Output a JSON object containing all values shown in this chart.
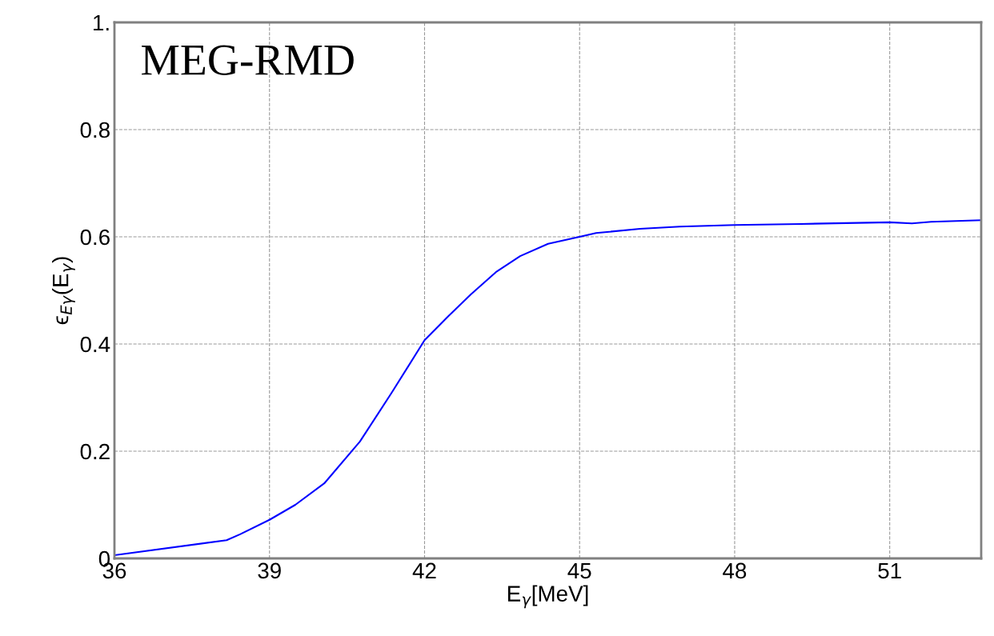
{
  "chart_data": {
    "type": "line",
    "xlabel": "E$_{γ}$[MeV]",
    "ylabel": "ϵ$_{Eγ}$(E$_{γ}$)",
    "annotations": [
      "MEG-RMD"
    ],
    "x": [
      36,
      38.17,
      38.43,
      39,
      39.5,
      40.06,
      40.75,
      41.37,
      42,
      42.46,
      42.9,
      43.38,
      43.85,
      44.39,
      45,
      45.32,
      46.17,
      46.94,
      48,
      49.27,
      51,
      51.43,
      51.8,
      52.77
    ],
    "series": [
      {
        "color": "#0000ff",
        "values": [
          0.006,
          0.034,
          0.045,
          0.072,
          0.1,
          0.14,
          0.218,
          0.31,
          0.407,
          0.452,
          0.493,
          0.534,
          0.564,
          0.587,
          0.6,
          0.607,
          0.615,
          0.619,
          0.622,
          0.624,
          0.627,
          0.625,
          0.628,
          0.631
        ]
      }
    ],
    "xlim": [
      36,
      52.77
    ],
    "ylim": [
      0,
      1.0
    ],
    "xticks": [
      36,
      39,
      42,
      45,
      48,
      51
    ],
    "yticks": [
      {
        "value": 0,
        "label": "0"
      },
      0.2,
      0.4,
      0.6,
      0.8,
      {
        "value": 1.0,
        "label": "1."
      }
    ],
    "grid": true,
    "line_style": "solid",
    "marker": "none"
  }
}
